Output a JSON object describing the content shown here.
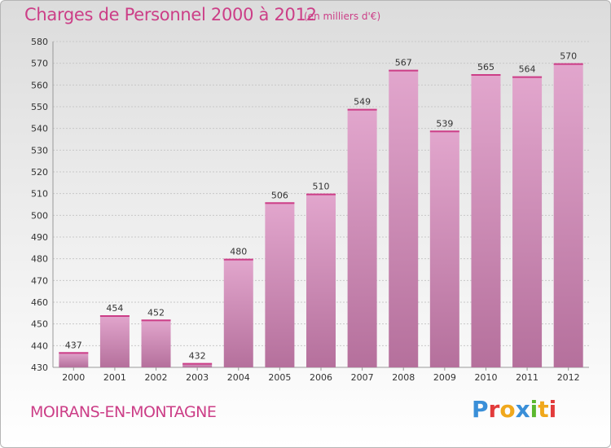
{
  "header": {
    "title": "Charges de Personnel 2000 à 2012",
    "subtitle": "(en milliers d'€)"
  },
  "footer": {
    "commune": "MOIRANS-EN-MONTAGNE",
    "logo": "Proxiti"
  },
  "colors": {
    "accent": "#cc3e87",
    "bar_top": "#e2a6cd",
    "bar_bottom": "#b5709c",
    "logo_letters": [
      "#3a8fd8",
      "#e23b3b",
      "#f0a81c",
      "#3a8fd8",
      "#5cb82e",
      "#f0a81c",
      "#e23b3b"
    ]
  },
  "chart_data": {
    "type": "bar",
    "title": "Charges de Personnel 2000 à 2012",
    "subtitle": "(en milliers d'€)",
    "categories": [
      "2000",
      "2001",
      "2002",
      "2003",
      "2004",
      "2005",
      "2006",
      "2007",
      "2008",
      "2009",
      "2010",
      "2011",
      "2012"
    ],
    "values": [
      437,
      454,
      452,
      432,
      480,
      506,
      510,
      549,
      567,
      539,
      565,
      564,
      570
    ],
    "ylim": [
      430,
      580
    ],
    "yticks": [
      430,
      440,
      450,
      460,
      470,
      480,
      490,
      500,
      510,
      520,
      530,
      540,
      550,
      560,
      570,
      580
    ],
    "grid": true,
    "xlabel": "",
    "ylabel": ""
  }
}
